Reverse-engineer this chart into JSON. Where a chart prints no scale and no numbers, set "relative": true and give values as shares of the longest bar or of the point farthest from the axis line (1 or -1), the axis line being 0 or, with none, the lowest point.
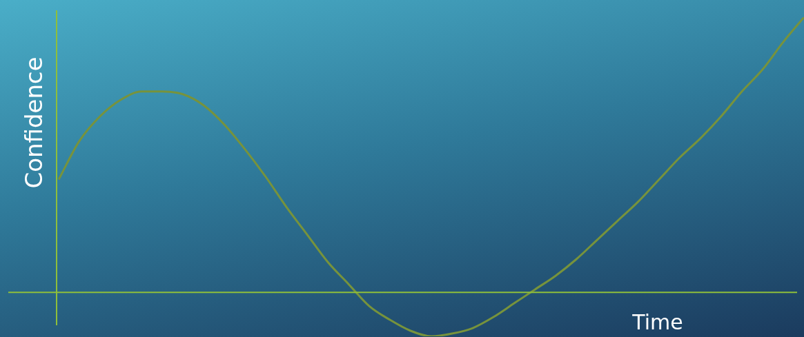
{
  "chart_data": {
    "type": "line",
    "xlabel": "Time",
    "ylabel": "Confidence",
    "relative": true,
    "ref_lines": [
      {
        "axis": "y",
        "value": 0,
        "color": "#8fbf3a"
      }
    ],
    "legend": false,
    "marker": "none",
    "line_style": "solid",
    "categories": [
      null,
      null,
      null,
      null,
      null,
      null,
      null,
      null,
      null,
      null,
      null,
      null,
      null,
      null,
      null,
      null,
      null,
      null,
      null,
      null,
      null,
      null,
      null,
      null,
      null,
      null,
      null,
      null,
      null,
      null,
      null,
      null,
      null,
      null,
      null,
      null,
      null
    ],
    "series": [
      {
        "color": "#77933c",
        "values": [
          0.41,
          0.55,
          0.64,
          0.7,
          0.73,
          0.73,
          0.72,
          0.68,
          0.61,
          0.52,
          0.42,
          0.31,
          0.21,
          0.11,
          0.03,
          -0.05,
          -0.1,
          -0.14,
          -0.16,
          -0.15,
          -0.13,
          -0.09,
          -0.04,
          0.01,
          0.06,
          0.12,
          0.19,
          0.26,
          0.33,
          0.41,
          0.49,
          0.56,
          0.64,
          0.73,
          0.81,
          0.91,
          1.0
        ]
      }
    ]
  }
}
